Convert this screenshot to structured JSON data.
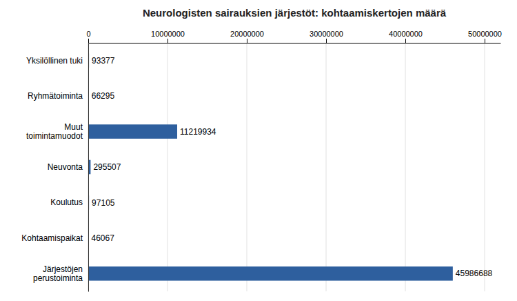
{
  "chart_data": {
    "type": "bar",
    "orientation": "horizontal",
    "title": "Neurologisten sairauksien järjestöt: kohtaamiskertojen määrä",
    "categories": [
      "Yksilöllinen tuki",
      "Ryhmätoiminta",
      "Muut\ntoimintamuodot",
      "Neuvonta",
      "Koulutus",
      "Kohtaamispaikat",
      "Järjestöjen\nperustoiminta"
    ],
    "values": [
      93377,
      66295,
      11219934,
      295507,
      97105,
      46067,
      45986688
    ],
    "color": "#2e5f9e",
    "xlim": [
      0,
      52000000
    ],
    "xticks": [
      0,
      10000000,
      20000000,
      30000000,
      40000000,
      50000000
    ],
    "grid": true,
    "data_labels": true
  }
}
